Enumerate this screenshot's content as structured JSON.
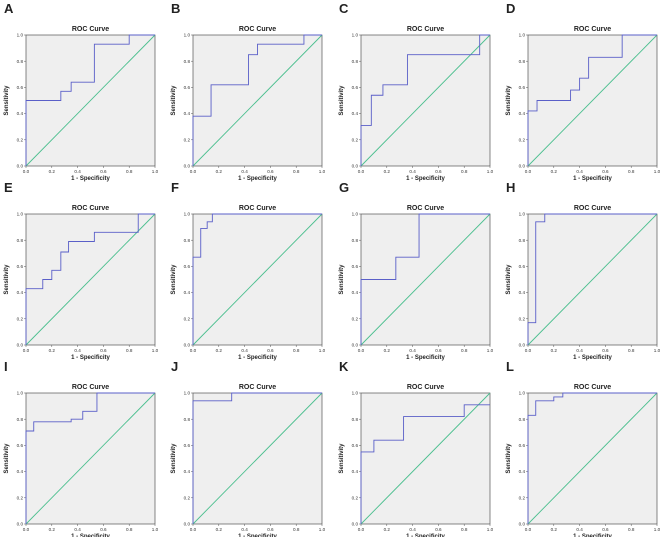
{
  "chart_data": [
    {
      "panel": "A",
      "type": "line",
      "title": "ROC Curve",
      "xlabel": "1 - Specificity",
      "ylabel": "Sensitivity",
      "xlim": [
        0,
        1
      ],
      "ylim": [
        0,
        1
      ],
      "xticks": [
        "0.0",
        "0.2",
        "0.4",
        "0.6",
        "0.8",
        "1.0"
      ],
      "yticks": [
        "0.0",
        "0.2",
        "0.4",
        "0.6",
        "0.8",
        "1.0"
      ],
      "grid": false,
      "series": [
        {
          "x": [
            0,
            0,
            0.27,
            0.27,
            0.35,
            0.35,
            0.53,
            0.53,
            0.8,
            0.8,
            1
          ],
          "y": [
            0,
            0.5,
            0.5,
            0.57,
            0.57,
            0.64,
            0.64,
            0.93,
            0.93,
            1,
            1
          ]
        }
      ],
      "reference": {
        "x": [
          0,
          1
        ],
        "y": [
          0,
          1
        ]
      },
      "colors": {
        "curve": "#5a5fc8",
        "reference": "#4cbf8f",
        "background": "#efefef"
      }
    },
    {
      "panel": "B",
      "type": "line",
      "title": "ROC Curve",
      "xlabel": "1 - Specificity",
      "ylabel": "Sensitivity",
      "xlim": [
        0,
        1
      ],
      "ylim": [
        0,
        1
      ],
      "xticks": [
        "0.0",
        "0.2",
        "0.4",
        "0.6",
        "0.8",
        "1.0"
      ],
      "yticks": [
        "0.0",
        "0.2",
        "0.4",
        "0.6",
        "0.8",
        "1.0"
      ],
      "grid": false,
      "series": [
        {
          "x": [
            0,
            0,
            0.14,
            0.14,
            0.43,
            0.43,
            0.5,
            0.5,
            0.86,
            0.86,
            1
          ],
          "y": [
            0,
            0.38,
            0.38,
            0.62,
            0.62,
            0.85,
            0.85,
            0.93,
            0.93,
            1,
            1
          ]
        }
      ],
      "reference": {
        "x": [
          0,
          1
        ],
        "y": [
          0,
          1
        ]
      },
      "colors": {
        "curve": "#5a5fc8",
        "reference": "#4cbf8f",
        "background": "#efefef"
      }
    },
    {
      "panel": "C",
      "type": "line",
      "title": "ROC Curve",
      "xlabel": "1 - Specificity",
      "ylabel": "Sensitivity",
      "xlim": [
        0,
        1
      ],
      "ylim": [
        0,
        1
      ],
      "xticks": [
        "0.0",
        "0.2",
        "0.4",
        "0.6",
        "0.8",
        "1.0"
      ],
      "yticks": [
        "0.0",
        "0.2",
        "0.4",
        "0.6",
        "0.8",
        "1.0"
      ],
      "grid": false,
      "series": [
        {
          "x": [
            0,
            0,
            0.08,
            0.08,
            0.17,
            0.17,
            0.36,
            0.36,
            0.92,
            0.92,
            1
          ],
          "y": [
            0,
            0.31,
            0.31,
            0.54,
            0.54,
            0.62,
            0.62,
            0.85,
            0.85,
            1,
            1
          ]
        }
      ],
      "reference": {
        "x": [
          0,
          1
        ],
        "y": [
          0,
          1
        ]
      },
      "colors": {
        "curve": "#5a5fc8",
        "reference": "#4cbf8f",
        "background": "#efefef"
      }
    },
    {
      "panel": "D",
      "type": "line",
      "title": "ROC Curve",
      "xlabel": "1 - Specificity",
      "ylabel": "Sensitivity",
      "xlim": [
        0,
        1
      ],
      "ylim": [
        0,
        1
      ],
      "xticks": [
        "0.0",
        "0.2",
        "0.4",
        "0.6",
        "0.8",
        "1.0"
      ],
      "yticks": [
        "0.0",
        "0.2",
        "0.4",
        "0.6",
        "0.8",
        "1.0"
      ],
      "grid": false,
      "series": [
        {
          "x": [
            0,
            0,
            0.07,
            0.07,
            0.33,
            0.33,
            0.4,
            0.4,
            0.47,
            0.47,
            0.73,
            0.73,
            1
          ],
          "y": [
            0,
            0.42,
            0.42,
            0.5,
            0.5,
            0.58,
            0.58,
            0.67,
            0.67,
            0.83,
            0.83,
            1,
            1
          ]
        }
      ],
      "reference": {
        "x": [
          0,
          1
        ],
        "y": [
          0,
          1
        ]
      },
      "colors": {
        "curve": "#5a5fc8",
        "reference": "#4cbf8f",
        "background": "#efefef"
      }
    },
    {
      "panel": "E",
      "type": "line",
      "title": "ROC Curve",
      "xlabel": "1 - Specificity",
      "ylabel": "Sensitivity",
      "xlim": [
        0,
        1
      ],
      "ylim": [
        0,
        1
      ],
      "xticks": [
        "0.0",
        "0.2",
        "0.4",
        "0.6",
        "0.8",
        "1.0"
      ],
      "yticks": [
        "0.0",
        "0.2",
        "0.4",
        "0.6",
        "0.8",
        "1.0"
      ],
      "grid": false,
      "series": [
        {
          "x": [
            0,
            0,
            0.13,
            0.13,
            0.2,
            0.2,
            0.27,
            0.27,
            0.33,
            0.33,
            0.53,
            0.53,
            0.87,
            0.87,
            1
          ],
          "y": [
            0,
            0.43,
            0.43,
            0.5,
            0.5,
            0.57,
            0.57,
            0.71,
            0.71,
            0.79,
            0.79,
            0.86,
            0.86,
            1,
            1
          ]
        }
      ],
      "reference": {
        "x": [
          0,
          1
        ],
        "y": [
          0,
          1
        ]
      },
      "colors": {
        "curve": "#5a5fc8",
        "reference": "#4cbf8f",
        "background": "#efefef"
      }
    },
    {
      "panel": "F",
      "type": "line",
      "title": "ROC Curve",
      "xlabel": "1 - Specificity",
      "ylabel": "Sensitivity",
      "xlim": [
        0,
        1
      ],
      "ylim": [
        0,
        1
      ],
      "xticks": [
        "0.0",
        "0.2",
        "0.4",
        "0.6",
        "0.8",
        "1.0"
      ],
      "yticks": [
        "0.0",
        "0.2",
        "0.4",
        "0.6",
        "0.8",
        "1.0"
      ],
      "grid": false,
      "series": [
        {
          "x": [
            0,
            0,
            0.06,
            0.06,
            0.11,
            0.11,
            0.15,
            0.15,
            1
          ],
          "y": [
            0,
            0.67,
            0.67,
            0.89,
            0.89,
            0.94,
            0.94,
            1,
            1
          ]
        }
      ],
      "reference": {
        "x": [
          0,
          1
        ],
        "y": [
          0,
          1
        ]
      },
      "colors": {
        "curve": "#5a5fc8",
        "reference": "#4cbf8f",
        "background": "#efefef"
      }
    },
    {
      "panel": "G",
      "type": "line",
      "title": "ROC Curve",
      "xlabel": "1 - Specificity",
      "ylabel": "Sensitivity",
      "xlim": [
        0,
        1
      ],
      "ylim": [
        0,
        1
      ],
      "xticks": [
        "0.0",
        "0.2",
        "0.4",
        "0.6",
        "0.8",
        "1.0"
      ],
      "yticks": [
        "0.0",
        "0.2",
        "0.4",
        "0.6",
        "0.8",
        "1.0"
      ],
      "grid": false,
      "series": [
        {
          "x": [
            0,
            0,
            0.27,
            0.27,
            0.45,
            0.45,
            1
          ],
          "y": [
            0,
            0.5,
            0.5,
            0.67,
            0.67,
            1,
            1
          ]
        }
      ],
      "reference": {
        "x": [
          0,
          1
        ],
        "y": [
          0,
          1
        ]
      },
      "colors": {
        "curve": "#5a5fc8",
        "reference": "#4cbf8f",
        "background": "#efefef"
      }
    },
    {
      "panel": "H",
      "type": "line",
      "title": "ROC Curve",
      "xlabel": "1 - Specificity",
      "ylabel": "Sensitivity",
      "xlim": [
        0,
        1
      ],
      "ylim": [
        0,
        1
      ],
      "xticks": [
        "0.0",
        "0.2",
        "0.4",
        "0.6",
        "0.8",
        "1.0"
      ],
      "yticks": [
        "0.0",
        "0.2",
        "0.4",
        "0.6",
        "0.8",
        "1.0"
      ],
      "grid": false,
      "series": [
        {
          "x": [
            0,
            0,
            0.06,
            0.06,
            0.13,
            0.13,
            1
          ],
          "y": [
            0,
            0.17,
            0.17,
            0.94,
            0.94,
            1,
            1
          ]
        }
      ],
      "reference": {
        "x": [
          0,
          1
        ],
        "y": [
          0,
          1
        ]
      },
      "colors": {
        "curve": "#5a5fc8",
        "reference": "#4cbf8f",
        "background": "#efefef"
      }
    },
    {
      "panel": "I",
      "type": "line",
      "title": "ROC Curve",
      "xlabel": "1 - Specificity",
      "ylabel": "Sensitivity",
      "xlim": [
        0,
        1
      ],
      "ylim": [
        0,
        1
      ],
      "xticks": [
        "0.0",
        "0.2",
        "0.4",
        "0.6",
        "0.8",
        "1.0"
      ],
      "yticks": [
        "0.0",
        "0.2",
        "0.4",
        "0.6",
        "0.8",
        "1.0"
      ],
      "grid": false,
      "series": [
        {
          "x": [
            0,
            0,
            0.06,
            0.06,
            0.35,
            0.35,
            0.44,
            0.44,
            0.55,
            0.55,
            1
          ],
          "y": [
            0,
            0.71,
            0.71,
            0.78,
            0.78,
            0.8,
            0.8,
            0.86,
            0.86,
            1,
            1
          ]
        }
      ],
      "reference": {
        "x": [
          0,
          1
        ],
        "y": [
          0,
          1
        ]
      },
      "colors": {
        "curve": "#5a5fc8",
        "reference": "#4cbf8f",
        "background": "#efefef"
      }
    },
    {
      "panel": "J",
      "type": "line",
      "title": "ROC Curve",
      "xlabel": "1 - Specificity",
      "ylabel": "Sensitivity",
      "xlim": [
        0,
        1
      ],
      "ylim": [
        0,
        1
      ],
      "xticks": [
        "0.0",
        "0.2",
        "0.4",
        "0.6",
        "0.8",
        "1.0"
      ],
      "yticks": [
        "0.0",
        "0.2",
        "0.4",
        "0.6",
        "0.8",
        "1.0"
      ],
      "grid": false,
      "series": [
        {
          "x": [
            0,
            0,
            0.3,
            0.3,
            1
          ],
          "y": [
            0,
            0.94,
            0.94,
            1,
            1
          ]
        }
      ],
      "reference": {
        "x": [
          0,
          1
        ],
        "y": [
          0,
          1
        ]
      },
      "colors": {
        "curve": "#5a5fc8",
        "reference": "#4cbf8f",
        "background": "#efefef"
      }
    },
    {
      "panel": "K",
      "type": "line",
      "title": "ROC Curve",
      "xlabel": "1 - Specificity",
      "ylabel": "Sensitivity",
      "xlim": [
        0,
        1
      ],
      "ylim": [
        0,
        1
      ],
      "xticks": [
        "0.0",
        "0.2",
        "0.4",
        "0.6",
        "0.8",
        "1.0"
      ],
      "yticks": [
        "0.0",
        "0.2",
        "0.4",
        "0.6",
        "0.8",
        "1.0"
      ],
      "grid": false,
      "series": [
        {
          "x": [
            0,
            0,
            0.1,
            0.1,
            0.33,
            0.33,
            0.8,
            0.8,
            1
          ],
          "y": [
            0,
            0.55,
            0.55,
            0.64,
            0.64,
            0.82,
            0.82,
            0.91,
            0.91
          ]
        }
      ],
      "reference": {
        "x": [
          0,
          1
        ],
        "y": [
          0,
          1
        ]
      },
      "colors": {
        "curve": "#5a5fc8",
        "reference": "#4cbf8f",
        "background": "#efefef"
      }
    },
    {
      "panel": "L",
      "type": "line",
      "title": "ROC Curve",
      "xlabel": "1 - Specificity",
      "ylabel": "Sensitivity",
      "xlim": [
        0,
        1
      ],
      "ylim": [
        0,
        1
      ],
      "xticks": [
        "0.0",
        "0.2",
        "0.4",
        "0.6",
        "0.8",
        "1.0"
      ],
      "yticks": [
        "0.0",
        "0.2",
        "0.4",
        "0.6",
        "0.8",
        "1.0"
      ],
      "grid": false,
      "series": [
        {
          "x": [
            0,
            0,
            0.06,
            0.06,
            0.2,
            0.2,
            0.27,
            0.27,
            1
          ],
          "y": [
            0,
            0.83,
            0.83,
            0.94,
            0.94,
            0.97,
            0.97,
            1,
            1
          ]
        }
      ],
      "reference": {
        "x": [
          0,
          1
        ],
        "y": [
          0,
          1
        ]
      },
      "colors": {
        "curve": "#5a5fc8",
        "reference": "#4cbf8f",
        "background": "#efefef"
      }
    }
  ]
}
